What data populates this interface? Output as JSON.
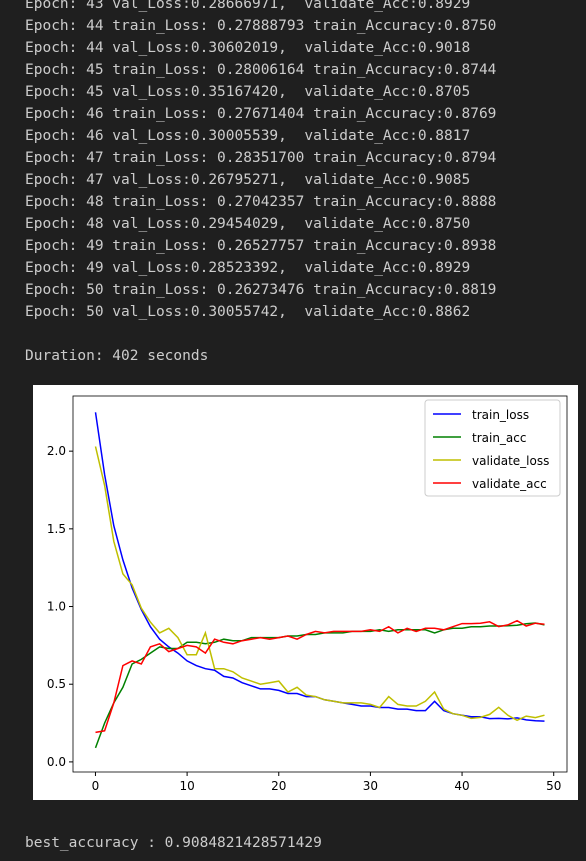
{
  "log": {
    "lines": [
      "Epoch: 43 val_Loss:0.28666971,  validate_Acc:0.8929",
      "Epoch: 44 train_Loss: 0.27888793 train_Accuracy:0.8750",
      "Epoch: 44 val_Loss:0.30602019,  validate_Acc:0.9018",
      "Epoch: 45 train_Loss: 0.28006164 train_Accuracy:0.8744",
      "Epoch: 45 val_Loss:0.35167420,  validate_Acc:0.8705",
      "Epoch: 46 train_Loss: 0.27671404 train_Accuracy:0.8769",
      "Epoch: 46 val_Loss:0.30005539,  validate_Acc:0.8817",
      "Epoch: 47 train_Loss: 0.28351700 train_Accuracy:0.8794",
      "Epoch: 47 val_Loss:0.26795271,  validate_Acc:0.9085",
      "Epoch: 48 train_Loss: 0.27042357 train_Accuracy:0.8888",
      "Epoch: 48 val_Loss:0.29454029,  validate_Acc:0.8750",
      "Epoch: 49 train_Loss: 0.26527757 train_Accuracy:0.8938",
      "Epoch: 49 val_Loss:0.28523392,  validate_Acc:0.8929",
      "Epoch: 50 train_Loss: 0.26273476 train_Accuracy:0.8819",
      "Epoch: 50 val_Loss:0.30055742,  validate_Acc:0.8862"
    ],
    "duration": "Duration: 402 seconds"
  },
  "chart_data": {
    "type": "line",
    "x": [
      0,
      1,
      2,
      3,
      4,
      5,
      6,
      7,
      8,
      9,
      10,
      11,
      12,
      13,
      14,
      15,
      16,
      17,
      18,
      19,
      20,
      21,
      22,
      23,
      24,
      25,
      26,
      27,
      28,
      29,
      30,
      31,
      32,
      33,
      34,
      35,
      36,
      37,
      38,
      39,
      40,
      41,
      42,
      43,
      44,
      45,
      46,
      47,
      48,
      49
    ],
    "series": [
      {
        "name": "train_loss",
        "color": "#0000ff",
        "values": [
          2.25,
          1.85,
          1.52,
          1.3,
          1.12,
          0.98,
          0.87,
          0.79,
          0.74,
          0.7,
          0.65,
          0.62,
          0.6,
          0.59,
          0.55,
          0.54,
          0.51,
          0.49,
          0.47,
          0.47,
          0.46,
          0.44,
          0.44,
          0.42,
          0.42,
          0.4,
          0.39,
          0.38,
          0.37,
          0.36,
          0.36,
          0.35,
          0.35,
          0.34,
          0.34,
          0.33,
          0.33,
          0.39,
          0.33,
          0.31,
          0.3,
          0.29,
          0.29,
          0.2789,
          0.2801,
          0.2767,
          0.2835,
          0.2704,
          0.2653,
          0.2627
        ]
      },
      {
        "name": "train_acc",
        "color": "#008000",
        "values": [
          0.09,
          0.25,
          0.38,
          0.48,
          0.63,
          0.66,
          0.7,
          0.74,
          0.73,
          0.73,
          0.77,
          0.77,
          0.76,
          0.77,
          0.79,
          0.78,
          0.78,
          0.8,
          0.8,
          0.8,
          0.8,
          0.81,
          0.81,
          0.82,
          0.82,
          0.83,
          0.83,
          0.83,
          0.84,
          0.84,
          0.84,
          0.85,
          0.84,
          0.85,
          0.85,
          0.85,
          0.85,
          0.83,
          0.85,
          0.86,
          0.86,
          0.87,
          0.87,
          0.875,
          0.8744,
          0.8769,
          0.8794,
          0.8888,
          0.8938,
          0.8819
        ]
      },
      {
        "name": "validate_loss",
        "color": "#bfbf00",
        "values": [
          2.03,
          1.78,
          1.42,
          1.21,
          1.14,
          0.99,
          0.9,
          0.83,
          0.86,
          0.8,
          0.69,
          0.69,
          0.83,
          0.6,
          0.6,
          0.58,
          0.54,
          0.52,
          0.5,
          0.51,
          0.52,
          0.45,
          0.48,
          0.43,
          0.42,
          0.4,
          0.39,
          0.38,
          0.38,
          0.38,
          0.37,
          0.35,
          0.42,
          0.37,
          0.36,
          0.36,
          0.39,
          0.45,
          0.34,
          0.31,
          0.3,
          0.28,
          0.2867,
          0.306,
          0.3517,
          0.3001,
          0.268,
          0.2945,
          0.2852,
          0.3006
        ]
      },
      {
        "name": "validate_acc",
        "color": "#ff0000",
        "values": [
          0.19,
          0.2,
          0.38,
          0.62,
          0.65,
          0.63,
          0.74,
          0.76,
          0.71,
          0.73,
          0.75,
          0.74,
          0.7,
          0.79,
          0.77,
          0.76,
          0.78,
          0.79,
          0.8,
          0.79,
          0.8,
          0.81,
          0.79,
          0.82,
          0.84,
          0.83,
          0.84,
          0.84,
          0.84,
          0.84,
          0.85,
          0.84,
          0.87,
          0.83,
          0.86,
          0.84,
          0.86,
          0.86,
          0.85,
          0.87,
          0.89,
          0.89,
          0.8929,
          0.9018,
          0.8705,
          0.8817,
          0.9085,
          0.875,
          0.8929,
          0.8862
        ]
      }
    ],
    "xlim": [
      -2.45,
      51.45
    ],
    "ylim": [
      -0.065,
      2.355
    ],
    "xticks": [
      0,
      10,
      20,
      30,
      40,
      50
    ],
    "yticks": [
      {
        "value": 0,
        "label": "0.0"
      },
      0.5,
      {
        "value": 1,
        "label": "1.0"
      },
      1.5,
      {
        "value": 2,
        "label": "2.0"
      }
    ],
    "legend": "upper right"
  },
  "result": "best_accuracy : 0.9084821428571429"
}
